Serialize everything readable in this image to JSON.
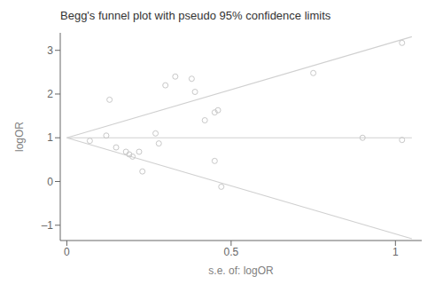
{
  "chart_data": {
    "type": "scatter",
    "title": "Begg's funnel plot with pseudo 95% confidence limits",
    "x_label": "s.e. of: logOR",
    "y_label": "logOR",
    "xlim": [
      -0.02,
      1.08
    ],
    "ylim": [
      -1.35,
      3.4
    ],
    "xticks": [
      0,
      0.5,
      1
    ],
    "yticks": [
      {
        "value": -1,
        "label": "–1"
      },
      0,
      1,
      2,
      3
    ],
    "grid": false,
    "series": [
      {
        "type": "line",
        "color": "#d0d0d0",
        "x": [
          0,
          1.05
        ],
        "values": [
          1.0,
          3.31
        ]
      },
      {
        "type": "line",
        "color": "#d0d0d0",
        "x": [
          0,
          1.05
        ],
        "values": [
          1.0,
          -1.31
        ]
      },
      {
        "type": "line",
        "color": "#d0d0d0",
        "x": [
          0,
          1.05
        ],
        "values": [
          1.0,
          1.0
        ]
      },
      {
        "type": "scatter",
        "color": "#c8c8c8",
        "marker": "open_circle",
        "x": [
          0.07,
          0.12,
          0.15,
          0.18,
          0.19,
          0.2,
          0.22,
          0.23,
          0.13,
          0.27,
          0.28,
          0.3,
          0.33,
          0.38,
          0.39,
          0.42,
          0.45,
          0.46,
          0.45,
          0.47,
          0.75,
          0.9,
          1.02,
          1.02
        ],
        "values": [
          0.93,
          1.05,
          0.78,
          0.68,
          0.62,
          0.57,
          0.68,
          0.23,
          1.87,
          1.1,
          0.87,
          2.2,
          2.4,
          2.35,
          2.05,
          1.4,
          1.58,
          1.63,
          0.47,
          -0.12,
          2.48,
          1.0,
          0.95,
          3.17
        ]
      }
    ]
  }
}
